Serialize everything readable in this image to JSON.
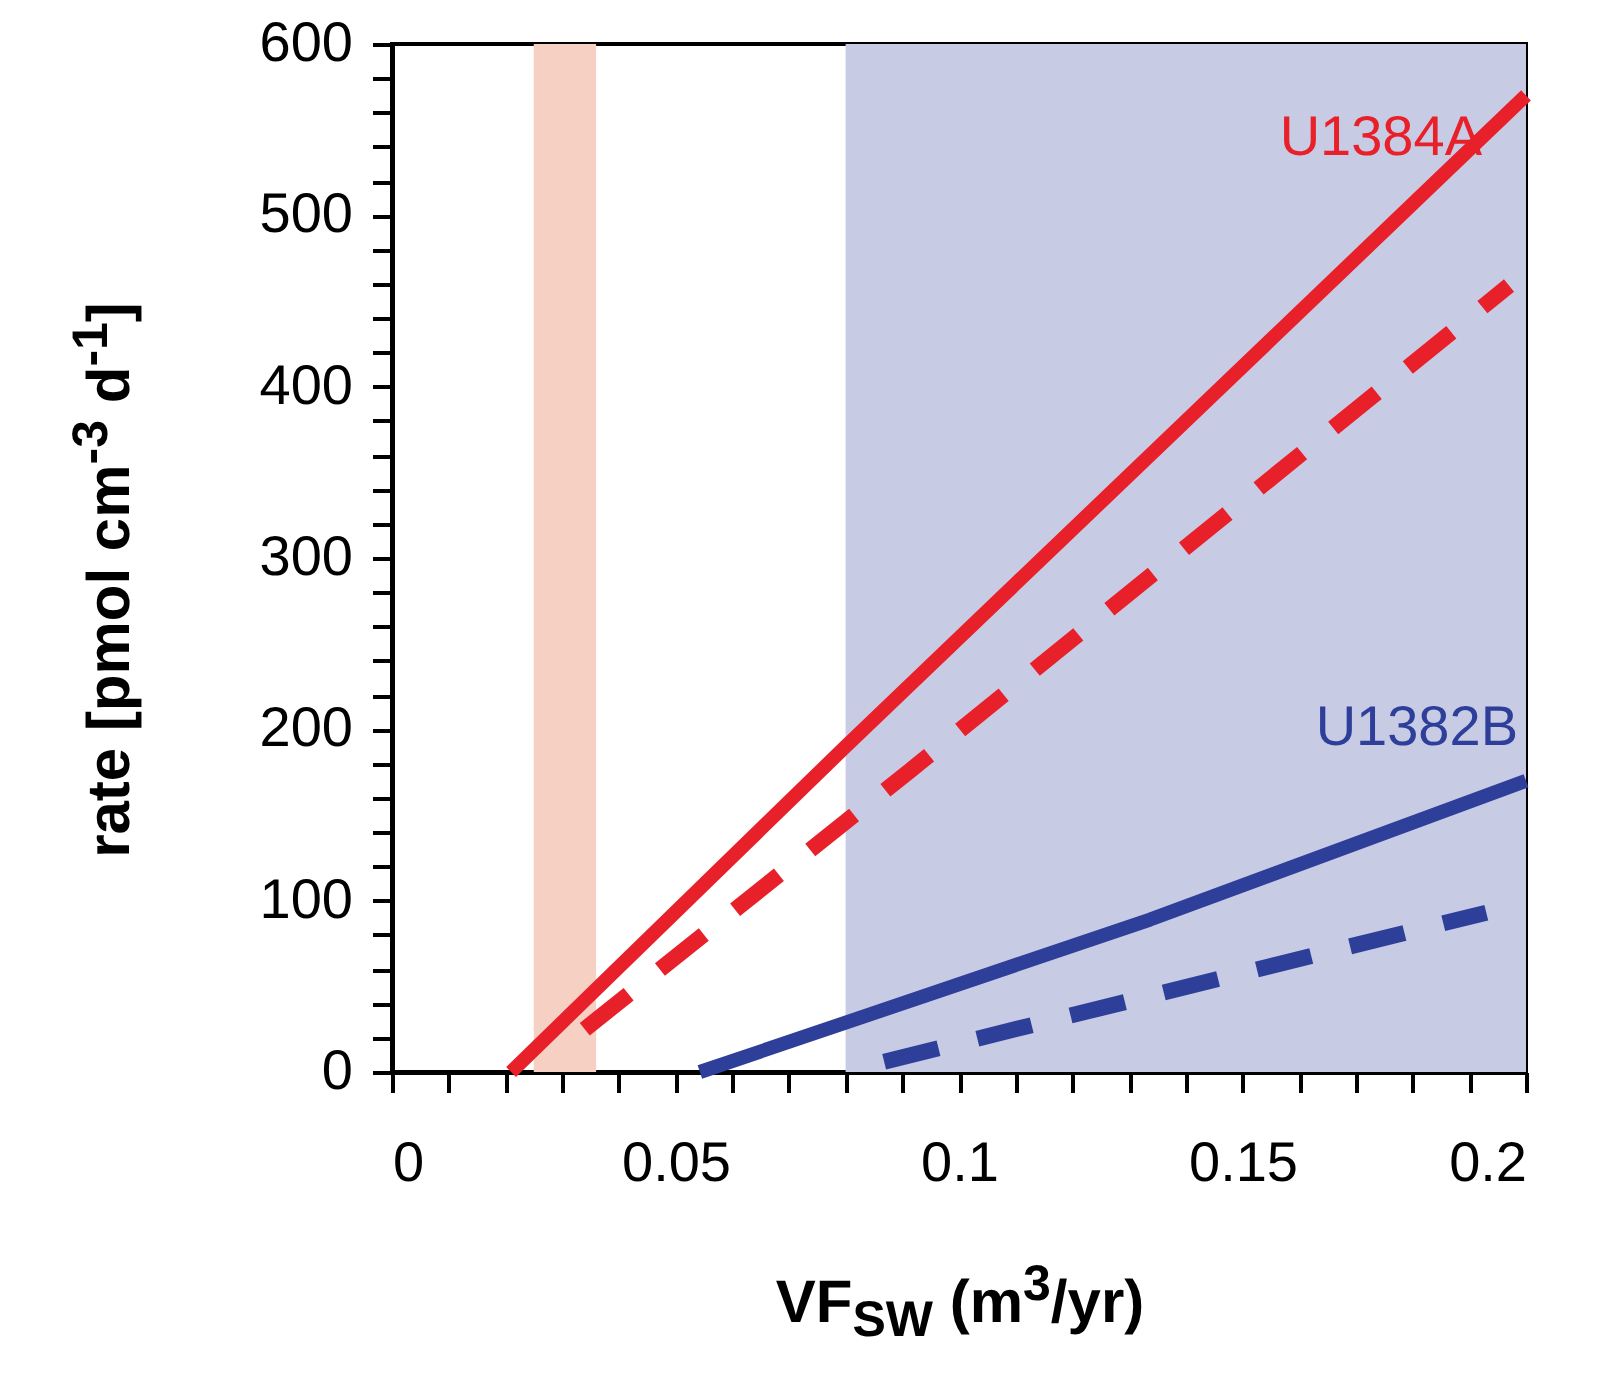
{
  "chart_data": {
    "type": "line",
    "xlabel": "VF$_{SW}$ (m$^{3}$/yr)",
    "ylabel": "rate [pmol cm$^{-3}$ d$^{-1}$]",
    "series": [
      {
        "name": "U1384A",
        "color": "#e8202a",
        "line_style": "solid",
        "x": [
          0.021,
          0.08,
          0.2
        ],
        "values": [
          0,
          190,
          570
        ]
      },
      {
        "color": "#e8202a",
        "line_style": "dashed",
        "x": [
          0.034,
          0.0914,
          0.197
        ],
        "values": [
          25,
          176,
          459
        ]
      },
      {
        "name": "U1382B",
        "color": "#2e3f9a",
        "line_style": "solid",
        "x": [
          0.0543,
          0.1337,
          0.2
        ],
        "values": [
          0,
          89,
          170
        ]
      },
      {
        "color": "#2e3f9a",
        "line_style": "dashed",
        "x": [
          0.0868,
          0.193
        ],
        "values": [
          6,
          93
        ]
      }
    ],
    "bands": [
      {
        "axis": "x",
        "from": 0.025,
        "to": 0.036,
        "color": "#f7d0c4"
      },
      {
        "axis": "x",
        "from": 0.08,
        "to": 0.2,
        "color": "#c8cbe4"
      }
    ],
    "xlim": [
      0,
      0.2
    ],
    "ylim": [
      0,
      600
    ],
    "xticks": [
      0,
      {
        "value": 0.01,
        "label": null
      },
      {
        "value": 0.02,
        "label": null
      },
      {
        "value": 0.03,
        "label": null
      },
      {
        "value": 0.04,
        "label": null
      },
      {
        "value": 0.05,
        "label": "0.05"
      },
      {
        "value": 0.06,
        "label": null
      },
      {
        "value": 0.07,
        "label": null
      },
      {
        "value": 0.08,
        "label": null
      },
      {
        "value": 0.09,
        "label": null
      },
      {
        "value": 0.1,
        "label": "0.1"
      },
      {
        "value": 0.11,
        "label": null
      },
      {
        "value": 0.12,
        "label": null
      },
      {
        "value": 0.13,
        "label": null
      },
      {
        "value": 0.14,
        "label": null
      },
      {
        "value": 0.15,
        "label": "0.15"
      },
      {
        "value": 0.16,
        "label": null
      },
      {
        "value": 0.17,
        "label": null
      },
      {
        "value": 0.18,
        "label": null
      },
      {
        "value": 0.19,
        "label": null
      },
      {
        "value": 0.2,
        "label": "0.2"
      }
    ],
    "yticks": [
      0,
      {
        "value": 20,
        "label": null
      },
      {
        "value": 40,
        "label": null
      },
      {
        "value": 60,
        "label": null
      },
      {
        "value": 80,
        "label": null
      },
      100,
      {
        "value": 120,
        "label": null
      },
      {
        "value": 140,
        "label": null
      },
      {
        "value": 160,
        "label": null
      },
      {
        "value": 180,
        "label": null
      },
      200,
      {
        "value": 220,
        "label": null
      },
      {
        "value": 240,
        "label": null
      },
      {
        "value": 260,
        "label": null
      },
      {
        "value": 280,
        "label": null
      },
      300,
      {
        "value": 320,
        "label": null
      },
      {
        "value": 340,
        "label": null
      },
      {
        "value": 360,
        "label": null
      },
      {
        "value": 380,
        "label": null
      },
      400,
      {
        "value": 420,
        "label": null
      },
      {
        "value": 440,
        "label": null
      },
      {
        "value": 460,
        "label": null
      },
      {
        "value": 480,
        "label": null
      },
      500,
      {
        "value": 520,
        "label": null
      },
      {
        "value": 540,
        "label": null
      },
      {
        "value": 560,
        "label": null
      },
      {
        "value": 580,
        "label": null
      },
      600
    ]
  }
}
